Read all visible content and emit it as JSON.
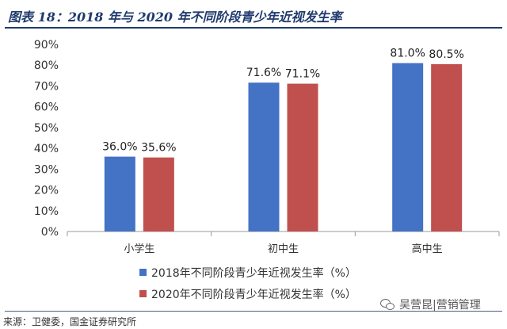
{
  "figure": {
    "title": "图表 18：2018 年与 2020 年不同阶段青少年近视发生率",
    "source": "来源：卫健委，国金证券研究所",
    "watermark": "吴营昆|营销管理"
  },
  "colors": {
    "series_2018": "#4472c4",
    "series_2020": "#c0504d",
    "title": "#1f3a6d"
  },
  "chart_data": {
    "type": "bar",
    "categories": [
      "小学生",
      "初中生",
      "高中生"
    ],
    "series": [
      {
        "name": "2018年不同阶段青少年近视发生率（%）",
        "values": [
          36.0,
          71.6,
          81.0
        ],
        "labels": [
          "36.0%",
          "71.6%",
          "81.0%"
        ]
      },
      {
        "name": "2020年不同阶段青少年近视发生率（%）",
        "values": [
          35.6,
          71.1,
          80.5
        ],
        "labels": [
          "35.6%",
          "71.1%",
          "80.5%"
        ]
      }
    ],
    "y_ticks": [
      "0%",
      "10%",
      "20%",
      "30%",
      "40%",
      "50%",
      "60%",
      "70%",
      "80%",
      "90%"
    ],
    "ylim": [
      0,
      90
    ],
    "grid": false,
    "legend_position": "bottom"
  }
}
